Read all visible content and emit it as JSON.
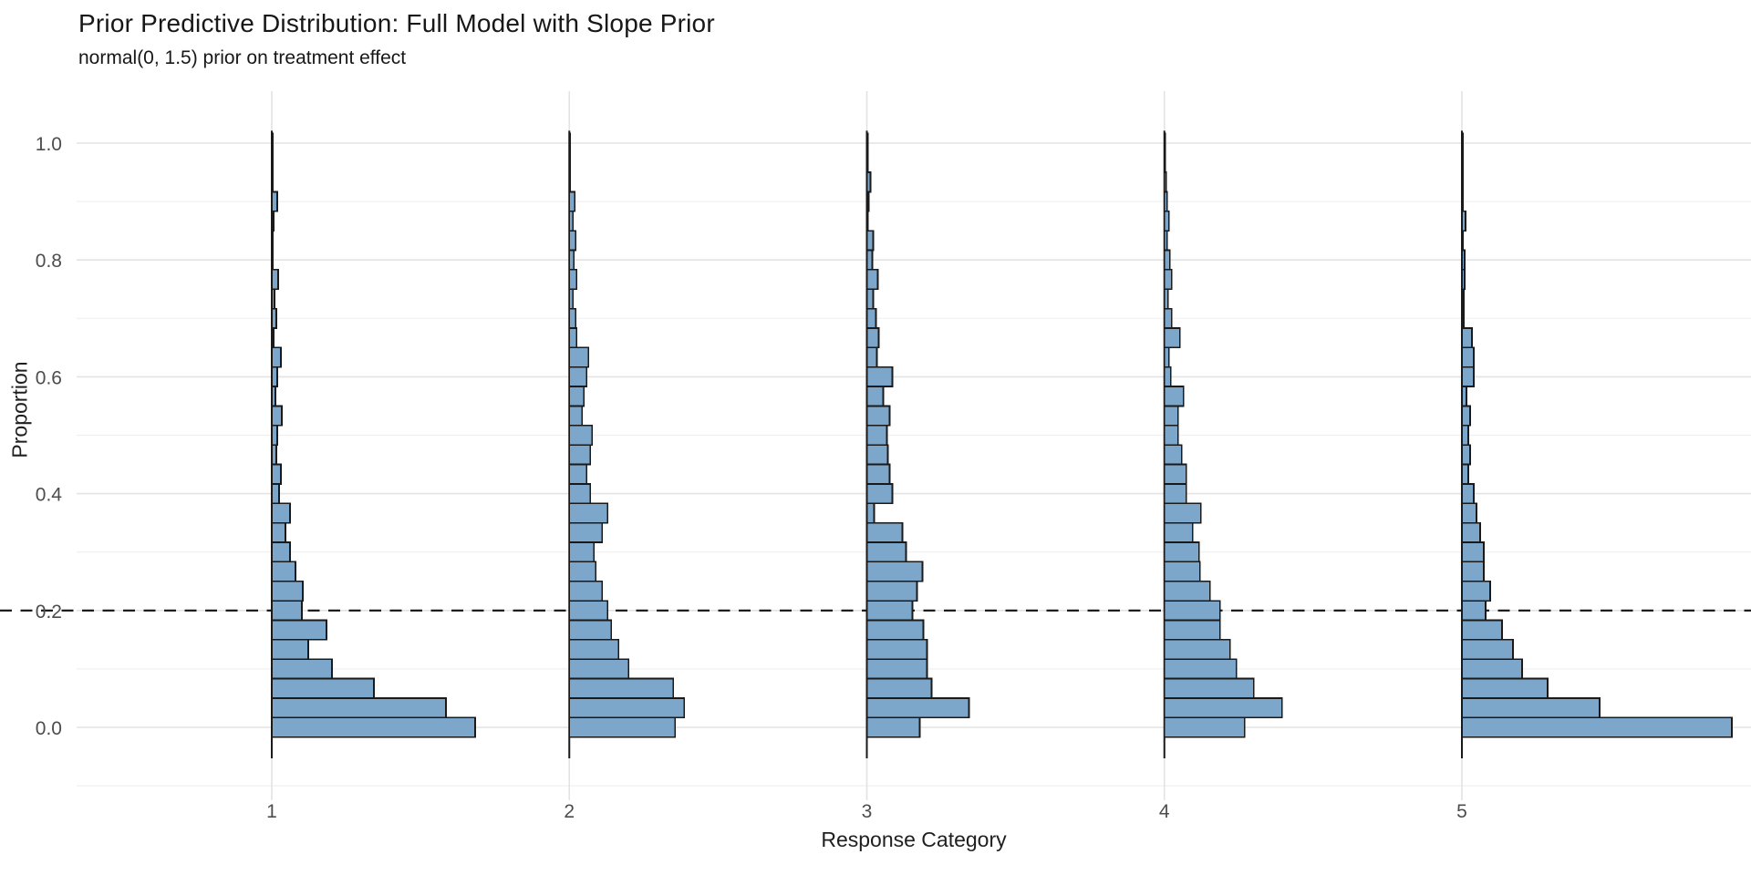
{
  "title": "Prior Predictive Distribution: Full Model with Slope Prior",
  "subtitle": "normal(0, 1.5) prior on treatment effect",
  "colors": {
    "bar_fill": "#7DA6CB",
    "bar_stroke": "#1A1A1A",
    "grid_major": "#E3E3E3",
    "grid_minor": "#F0F0F0",
    "reference_line": "#111111",
    "tick_label": "#4D4D4D",
    "background": "#FFFFFF"
  },
  "chart_data": {
    "type": "bar",
    "variant": "sideways histograms of proportion, one per response category (prior predictive draws)",
    "title": "Prior Predictive Distribution: Full Model with Slope Prior",
    "subtitle": "normal(0, 1.5) prior on treatment effect",
    "xlabel": "Response Category",
    "ylabel": "Proportion",
    "x_categories": [
      "1",
      "2",
      "3",
      "4",
      "5"
    ],
    "y_tick_labels": [
      "0.0",
      "0.2",
      "0.4",
      "0.6",
      "0.8",
      "1.0"
    ],
    "y_ticks": [
      0.0,
      0.2,
      0.4,
      0.6,
      0.8,
      1.0
    ],
    "y_minor_gridlines": [
      -0.1,
      0.1,
      0.3,
      0.5,
      0.7,
      0.9
    ],
    "ylim": [
      -0.12,
      1.09
    ],
    "grid": "major and minor horizontal, major vertical at each category",
    "legend": "none",
    "reference_line": {
      "y": 0.2,
      "style": "dashed",
      "color": "#111111"
    },
    "bins": {
      "n_bins": 31,
      "bin_width": 0.0333,
      "note": "bins centered at k/30 for k=0..30 on the Proportion axis"
    },
    "units": "bar extent = relative frequency of prior draws (arbitrary units, rendered px)",
    "series": [
      {
        "name": "category 1",
        "extents": [
          223,
          191,
          112,
          66,
          40,
          60,
          33,
          34,
          26,
          20,
          15,
          20,
          8,
          10,
          5,
          6,
          11,
          4,
          6,
          10,
          2,
          5,
          3,
          7,
          1,
          1,
          2,
          6,
          1,
          1,
          1
        ]
      },
      {
        "name": "category 2",
        "extents": [
          116,
          126,
          114,
          65,
          54,
          46,
          42,
          36,
          29,
          27,
          36,
          42,
          23,
          19,
          23,
          25,
          14,
          16,
          19,
          21,
          8,
          7,
          4,
          8,
          5,
          7,
          4,
          6,
          1,
          1,
          1
        ]
      },
      {
        "name": "category 3",
        "extents": [
          58,
          112,
          71,
          66,
          66,
          62,
          50,
          55,
          61,
          43,
          39,
          8,
          28,
          25,
          23,
          22,
          25,
          18,
          28,
          11,
          13,
          10,
          7,
          12,
          6,
          7,
          1,
          2,
          4,
          1,
          1
        ]
      },
      {
        "name": "category 4",
        "extents": [
          88,
          129,
          98,
          79,
          72,
          61,
          61,
          50,
          39,
          38,
          31,
          40,
          24,
          24,
          19,
          15,
          15,
          21,
          7,
          5,
          17,
          8,
          4,
          8,
          6,
          3,
          5,
          3,
          2,
          1,
          1
        ]
      },
      {
        "name": "category 5",
        "extents": [
          296,
          151,
          94,
          66,
          56,
          44,
          26,
          31,
          24,
          24,
          20,
          16,
          13,
          7,
          9,
          7,
          9,
          5,
          13,
          13,
          11,
          2,
          2,
          3,
          3,
          1,
          4,
          1,
          1,
          1,
          1
        ]
      }
    ]
  }
}
